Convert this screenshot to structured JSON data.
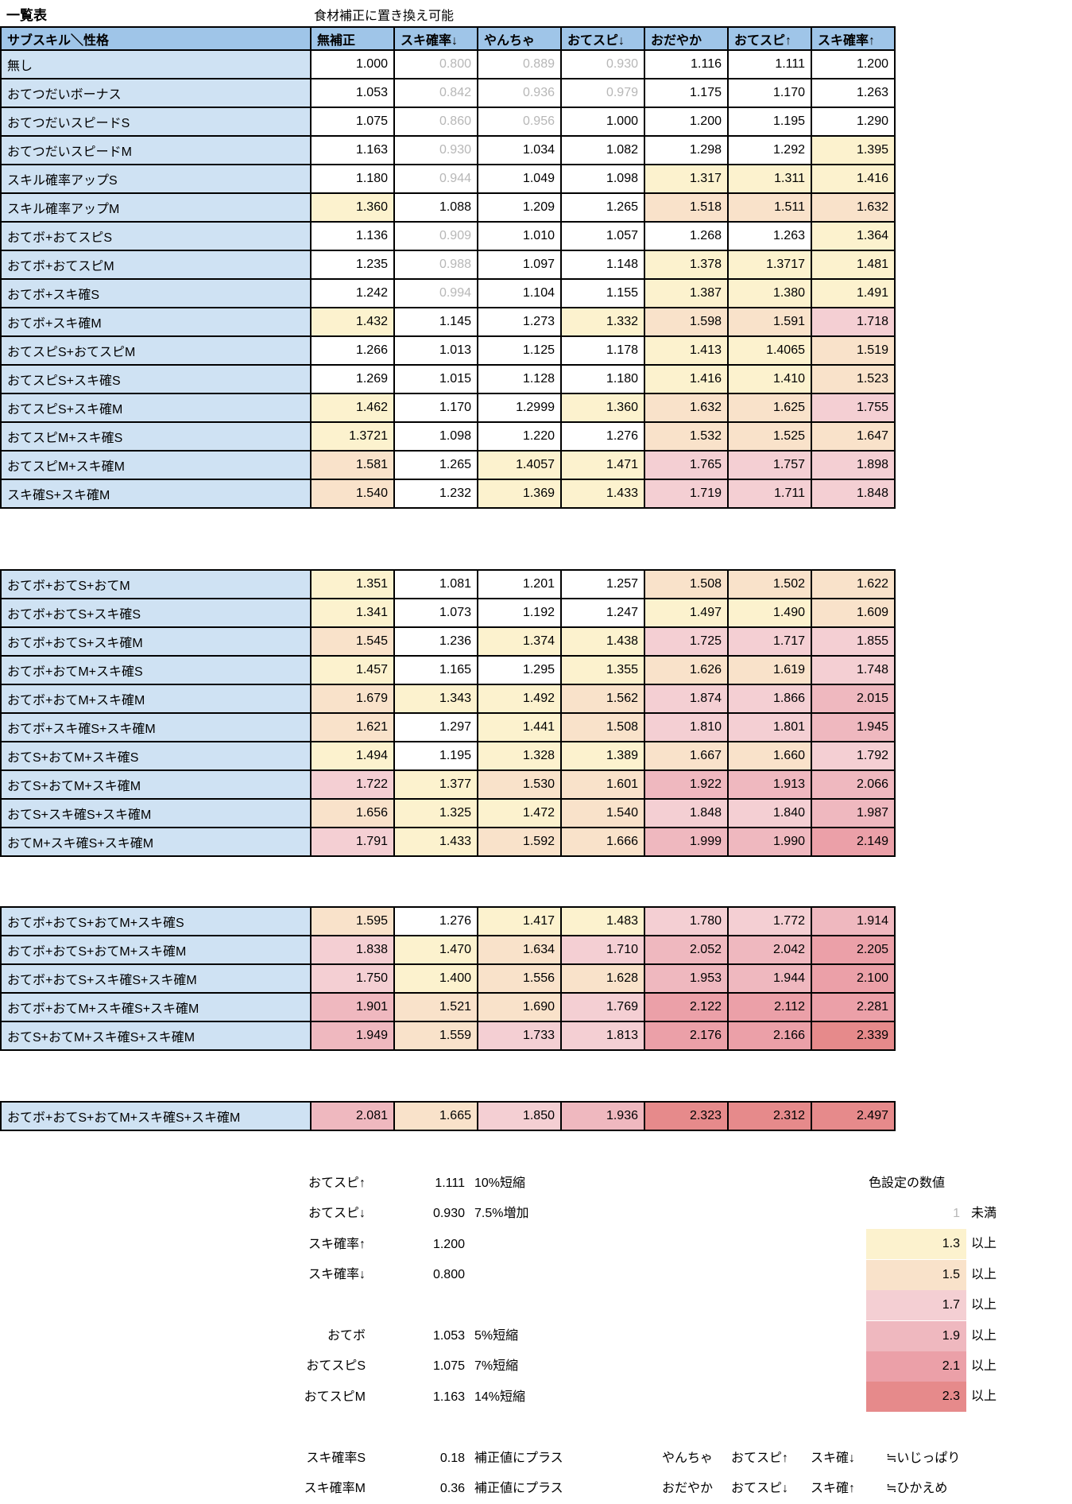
{
  "page": {
    "title": "一覧表",
    "subtitle": "食材補正に置き換え可能"
  },
  "table": {
    "corner": "サブスキル＼性格",
    "columns": [
      "無補正",
      "スキ確率↓",
      "やんちゃ",
      "おてスピ↓",
      "おだやか",
      "おてスピ↑",
      "スキ確率↑"
    ],
    "blocks": [
      {
        "rows": [
          {
            "label": "無し",
            "values": [
              "1.000",
              "0.800",
              "0.889",
              "0.930",
              "1.116",
              "1.111",
              "1.200"
            ]
          },
          {
            "label": "おてつだいボーナス",
            "values": [
              "1.053",
              "0.842",
              "0.936",
              "0.979",
              "1.175",
              "1.170",
              "1.263"
            ]
          },
          {
            "label": "おてつだいスピードS",
            "values": [
              "1.075",
              "0.860",
              "0.956",
              "1.000",
              "1.200",
              "1.195",
              "1.290"
            ]
          },
          {
            "label": "おてつだいスピードM",
            "values": [
              "1.163",
              "0.930",
              "1.034",
              "1.082",
              "1.298",
              "1.292",
              "1.395"
            ]
          },
          {
            "label": "スキル確率アップS",
            "values": [
              "1.180",
              "0.944",
              "1.049",
              "1.098",
              "1.317",
              "1.311",
              "1.416"
            ]
          },
          {
            "label": "スキル確率アップM",
            "values": [
              "1.360",
              "1.088",
              "1.209",
              "1.265",
              "1.518",
              "1.511",
              "1.632"
            ]
          },
          {
            "label": "おてボ+おてスピS",
            "values": [
              "1.136",
              "0.909",
              "1.010",
              "1.057",
              "1.268",
              "1.263",
              "1.364"
            ]
          },
          {
            "label": "おてボ+おてスピM",
            "values": [
              "1.235",
              "0.988",
              "1.097",
              "1.148",
              "1.378",
              "1.3717",
              "1.481"
            ]
          },
          {
            "label": "おてボ+スキ確S",
            "values": [
              "1.242",
              "0.994",
              "1.104",
              "1.155",
              "1.387",
              "1.380",
              "1.491"
            ]
          },
          {
            "label": "おてボ+スキ確M",
            "values": [
              "1.432",
              "1.145",
              "1.273",
              "1.332",
              "1.598",
              "1.591",
              "1.718"
            ]
          },
          {
            "label": "おてスピS+おてスピM",
            "values": [
              "1.266",
              "1.013",
              "1.125",
              "1.178",
              "1.413",
              "1.4065",
              "1.519"
            ]
          },
          {
            "label": "おてスピS+スキ確S",
            "values": [
              "1.269",
              "1.015",
              "1.128",
              "1.180",
              "1.416",
              "1.410",
              "1.523"
            ]
          },
          {
            "label": "おてスピS+スキ確M",
            "values": [
              "1.462",
              "1.170",
              "1.2999",
              "1.360",
              "1.632",
              "1.625",
              "1.755"
            ]
          },
          {
            "label": "おてスピM+スキ確S",
            "values": [
              "1.3721",
              "1.098",
              "1.220",
              "1.276",
              "1.532",
              "1.525",
              "1.647"
            ]
          },
          {
            "label": "おてスピM+スキ確M",
            "values": [
              "1.581",
              "1.265",
              "1.4057",
              "1.471",
              "1.765",
              "1.757",
              "1.898"
            ]
          },
          {
            "label": "スキ確S+スキ確M",
            "values": [
              "1.540",
              "1.232",
              "1.369",
              "1.433",
              "1.719",
              "1.711",
              "1.848"
            ]
          }
        ]
      },
      {
        "rows": [
          {
            "label": "おてボ+おてS+おてM",
            "values": [
              "1.351",
              "1.081",
              "1.201",
              "1.257",
              "1.508",
              "1.502",
              "1.622"
            ]
          },
          {
            "label": "おてボ+おてS+スキ確S",
            "values": [
              "1.341",
              "1.073",
              "1.192",
              "1.247",
              "1.497",
              "1.490",
              "1.609"
            ]
          },
          {
            "label": "おてボ+おてS+スキ確M",
            "values": [
              "1.545",
              "1.236",
              "1.374",
              "1.438",
              "1.725",
              "1.717",
              "1.855"
            ]
          },
          {
            "label": "おてボ+おてM+スキ確S",
            "values": [
              "1.457",
              "1.165",
              "1.295",
              "1.355",
              "1.626",
              "1.619",
              "1.748"
            ]
          },
          {
            "label": "おてボ+おてM+スキ確M",
            "values": [
              "1.679",
              "1.343",
              "1.492",
              "1.562",
              "1.874",
              "1.866",
              "2.015"
            ]
          },
          {
            "label": "おてボ+スキ確S+スキ確M",
            "values": [
              "1.621",
              "1.297",
              "1.441",
              "1.508",
              "1.810",
              "1.801",
              "1.945"
            ]
          },
          {
            "label": "おてS+おてM+スキ確S",
            "values": [
              "1.494",
              "1.195",
              "1.328",
              "1.389",
              "1.667",
              "1.660",
              "1.792"
            ]
          },
          {
            "label": "おてS+おてM+スキ確M",
            "values": [
              "1.722",
              "1.377",
              "1.530",
              "1.601",
              "1.922",
              "1.913",
              "2.066"
            ]
          },
          {
            "label": "おてS+スキ確S+スキ確M",
            "values": [
              "1.656",
              "1.325",
              "1.472",
              "1.540",
              "1.848",
              "1.840",
              "1.987"
            ]
          },
          {
            "label": "おてM+スキ確S+スキ確M",
            "values": [
              "1.791",
              "1.433",
              "1.592",
              "1.666",
              "1.999",
              "1.990",
              "2.149"
            ]
          }
        ]
      },
      {
        "rows": [
          {
            "label": "おてボ+おてS+おてM+スキ確S",
            "values": [
              "1.595",
              "1.276",
              "1.417",
              "1.483",
              "1.780",
              "1.772",
              "1.914"
            ]
          },
          {
            "label": "おてボ+おてS+おてM+スキ確M",
            "values": [
              "1.838",
              "1.470",
              "1.634",
              "1.710",
              "2.052",
              "2.042",
              "2.205"
            ]
          },
          {
            "label": "おてボ+おてS+スキ確S+スキ確M",
            "values": [
              "1.750",
              "1.400",
              "1.556",
              "1.628",
              "1.953",
              "1.944",
              "2.100"
            ]
          },
          {
            "label": "おてボ+おてM+スキ確S+スキ確M",
            "values": [
              "1.901",
              "1.521",
              "1.690",
              "1.769",
              "2.122",
              "2.112",
              "2.281"
            ]
          },
          {
            "label": "おてS+おてM+スキ確S+スキ確M",
            "values": [
              "1.949",
              "1.559",
              "1.733",
              "1.813",
              "2.176",
              "2.166",
              "2.339"
            ]
          }
        ]
      },
      {
        "rows": [
          {
            "label": "おてボ+おてS+おてM+スキ確S+スキ確M",
            "values": [
              "2.081",
              "1.665",
              "1.850",
              "1.936",
              "2.323",
              "2.312",
              "2.497"
            ]
          }
        ]
      }
    ]
  },
  "modifier_legend": {
    "groups": [
      {
        "items": [
          {
            "label": "おてスピ↑",
            "value": "1.111",
            "note": "10%短縮"
          },
          {
            "label": "おてスピ↓",
            "value": "0.930",
            "note": "7.5%増加"
          },
          {
            "label": "スキ確率↑",
            "value": "1.200",
            "note": ""
          },
          {
            "label": "スキ確率↓",
            "value": "0.800",
            "note": ""
          }
        ]
      },
      {
        "items": [
          {
            "label": "おてボ",
            "value": "1.053",
            "note": "5%短縮"
          },
          {
            "label": "おてスピS",
            "value": "1.075",
            "note": "7%短縮"
          },
          {
            "label": "おてスピM",
            "value": "1.163",
            "note": "14%短縮"
          }
        ]
      },
      {
        "items": [
          {
            "label": "スキ確率S",
            "value": "0.18",
            "note": "補正値にプラス"
          },
          {
            "label": "スキ確率M",
            "value": "0.36",
            "note": "補正値にプラス"
          }
        ]
      }
    ]
  },
  "color_scale": {
    "title": "色設定の数値",
    "entries": [
      {
        "value": "1",
        "suffix": "未満",
        "color": "",
        "gray_value": true
      },
      {
        "value": "1.3",
        "suffix": "以上",
        "color": "#FCF2CE"
      },
      {
        "value": "1.5",
        "suffix": "以上",
        "color": "#F9E2CA"
      },
      {
        "value": "1.7",
        "suffix": "以上",
        "color": "#F4CFD3"
      },
      {
        "value": "1.9",
        "suffix": "以上",
        "color": "#EFB8BF"
      },
      {
        "value": "2.1",
        "suffix": "以上",
        "color": "#EBA0A8"
      },
      {
        "value": "2.3",
        "suffix": "以上",
        "color": "#E68A8B"
      }
    ]
  },
  "nature_notes": [
    {
      "nature": "やんちゃ",
      "up": "おてスピ↑",
      "down": "スキ確↓",
      "approx": "≒いじっぱり"
    },
    {
      "nature": "おだやか",
      "up": "おてスピ↓",
      "down": "スキ確↑",
      "approx": "≒ひかえめ"
    }
  ],
  "colors": {
    "header_bg": "#9FC5E8",
    "label_bg": "#CFE2F3",
    "gray_text": "#B7B7B7",
    "black_text": "#000000",
    "border": "#000000"
  }
}
